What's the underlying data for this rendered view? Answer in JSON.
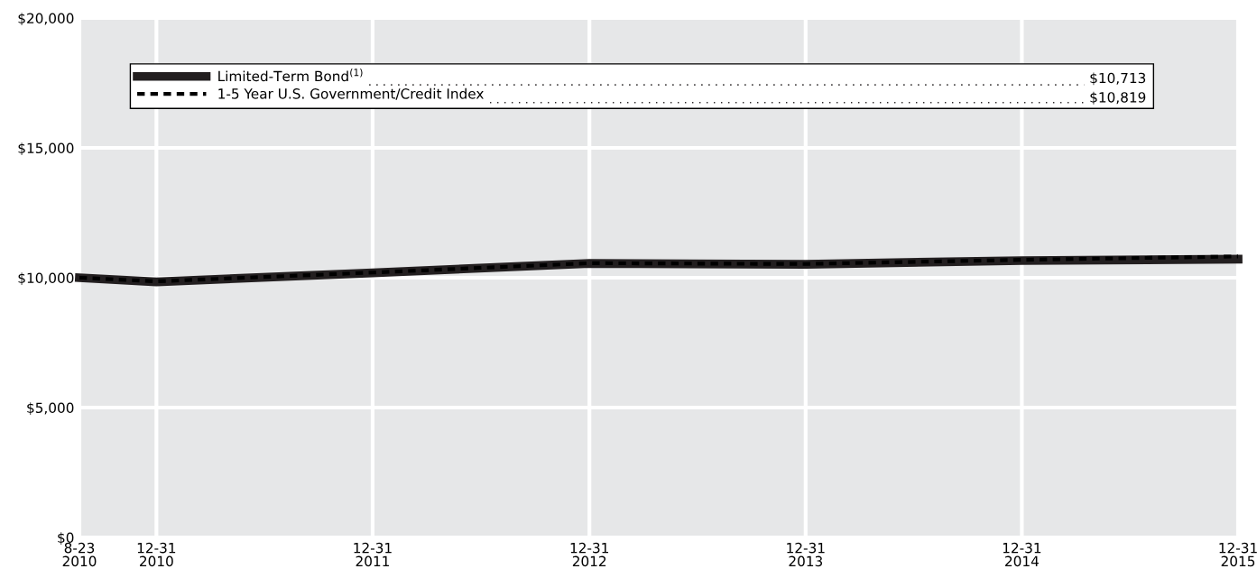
{
  "chart_data": {
    "type": "line",
    "x": [
      "2010-08-23",
      "2010-12-31",
      "2011-12-31",
      "2012-12-31",
      "2013-12-31",
      "2014-12-31",
      "2015-12-31"
    ],
    "series": [
      {
        "name": "Limited-Term Bond$^{(1)}$",
        "color": "#231f20",
        "line_style": "solid",
        "values": [
          10000,
          9840,
          10190,
          10550,
          10520,
          10660,
          10713
        ]
      },
      {
        "name": "1-5 Year U.S. Government/Credit Index",
        "color": "#000000",
        "line_style": "dashed",
        "values": [
          10000,
          9860,
          10200,
          10560,
          10530,
          10690,
          10819
        ]
      }
    ],
    "annotations": [
      "$10,713",
      "$10,819"
    ],
    "xlim": [
      "2010-08-23",
      "2015-12-31"
    ],
    "xticks": [
      {
        "value": "2010-08-23",
        "label": "8-23\n2010"
      },
      {
        "value": "2010-12-31",
        "label": "12-31\n2010"
      },
      {
        "value": "2011-12-31",
        "label": "12-31\n2011"
      },
      {
        "value": "2012-12-31",
        "label": "12-31\n2012"
      },
      {
        "value": "2013-12-31",
        "label": "12-31\n2013"
      },
      {
        "value": "2014-12-31",
        "label": "12-31\n2014"
      },
      {
        "value": "2015-12-31",
        "label": "12-31\n2015"
      }
    ],
    "ylim": [
      0,
      20000
    ],
    "yticks": [
      {
        "value": 0,
        "label": "$0"
      },
      {
        "value": 5000,
        "label": "$5,000"
      },
      {
        "value": 10000,
        "label": "$10,000"
      },
      {
        "value": 15000,
        "label": "$15,000"
      },
      {
        "value": 20000,
        "label": "$20,000"
      }
    ],
    "grid": true,
    "legend": "top",
    "marker": "none"
  }
}
